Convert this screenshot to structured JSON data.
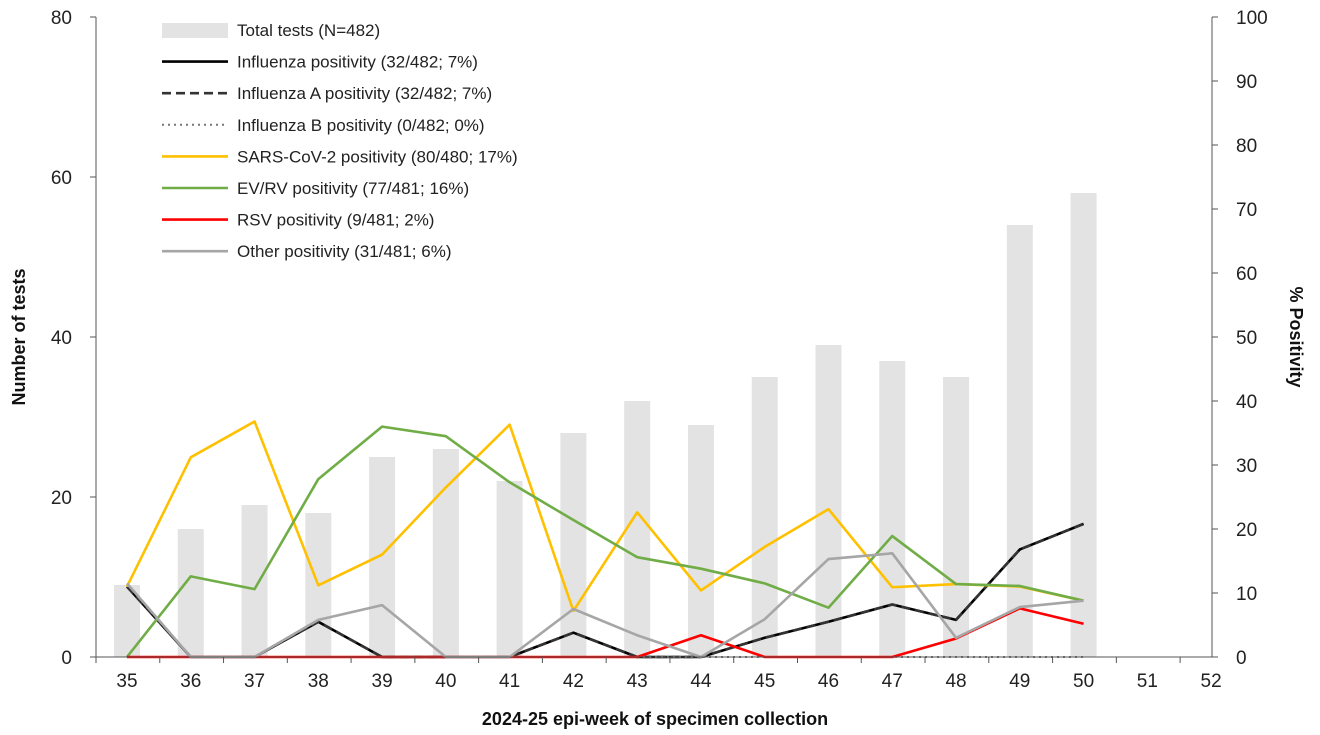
{
  "chart_data": {
    "type": "bar",
    "x_label": "2024-25 epi-week of specimen collection",
    "y_left_label": "Number of tests",
    "y_right_label": "% Positivity",
    "categories": [
      "35",
      "36",
      "37",
      "38",
      "39",
      "40",
      "41",
      "42",
      "43",
      "44",
      "45",
      "46",
      "47",
      "48",
      "49",
      "50",
      "51",
      "52"
    ],
    "y_left_lim": [
      0,
      80
    ],
    "y_left_ticks": [
      "0",
      "20",
      "40",
      "60",
      "80"
    ],
    "y_right_lim": [
      0,
      100
    ],
    "y_right_ticks": [
      "0",
      "10",
      "20",
      "30",
      "40",
      "50",
      "60",
      "70",
      "80",
      "90",
      "100"
    ],
    "bars": {
      "name": "Total tests (N=482)",
      "color": "#e3e3e3",
      "values": [
        9,
        16,
        19,
        18,
        25,
        26,
        22,
        28,
        32,
        29,
        35,
        39,
        37,
        35,
        54,
        58,
        null,
        null
      ]
    },
    "series": [
      {
        "name": "Influenza positivity (32/482; 7%)",
        "color": "#000000",
        "dash": "solid",
        "values": [
          11,
          0,
          0,
          5.5,
          0,
          0,
          0,
          3.8,
          0,
          0,
          3,
          5.5,
          8.2,
          5.8,
          16.8,
          20.8,
          null,
          null
        ]
      },
      {
        "name": "Influenza A positivity (32/482; 7%)",
        "color": "#333333",
        "dash": "dashed",
        "values": [
          11,
          0,
          0,
          5.5,
          0,
          0,
          0,
          3.8,
          0,
          0,
          3,
          5.5,
          8.2,
          5.8,
          16.8,
          20.8,
          null,
          null
        ]
      },
      {
        "name": "Influenza B positivity (0/482; 0%)",
        "color": "#777777",
        "dash": "dotted",
        "values": [
          0,
          0,
          0,
          0,
          0,
          0,
          0,
          0,
          0,
          0,
          0,
          0,
          0,
          0,
          0,
          0,
          null,
          null
        ]
      },
      {
        "name": "SARS-CoV-2 positivity (80/480; 17%)",
        "color": "#ffc000",
        "dash": "solid",
        "values": [
          11,
          31.2,
          36.8,
          11.2,
          16,
          26.5,
          36.3,
          7.2,
          22.6,
          10.4,
          17.2,
          23.1,
          10.9,
          11.4,
          11,
          8.8,
          null,
          null
        ]
      },
      {
        "name": "EV/RV positivity (77/481; 16%)",
        "color": "#70ad47",
        "dash": "solid",
        "values": [
          0,
          12.6,
          10.6,
          27.8,
          36,
          34.5,
          27.3,
          21.4,
          15.6,
          13.8,
          11.5,
          7.7,
          18.9,
          11.4,
          11.1,
          8.8,
          null,
          null
        ]
      },
      {
        "name": "RSV positivity (9/481; 2%)",
        "color": "#ff0000",
        "dash": "solid",
        "values": [
          0,
          0,
          0,
          0,
          0,
          0,
          0,
          0,
          0,
          3.4,
          0,
          0,
          0,
          2.9,
          7.6,
          5.2,
          null,
          null
        ]
      },
      {
        "name": "Other positivity (31/481; 6%)",
        "color": "#a6a6a6",
        "dash": "solid",
        "values": [
          11.5,
          0,
          0,
          5.8,
          8.1,
          0,
          0,
          7.5,
          3.4,
          0,
          5.9,
          15.3,
          16.2,
          3,
          7.8,
          8.8,
          null,
          null
        ]
      }
    ],
    "legend_position": "top-left",
    "grid": false
  }
}
